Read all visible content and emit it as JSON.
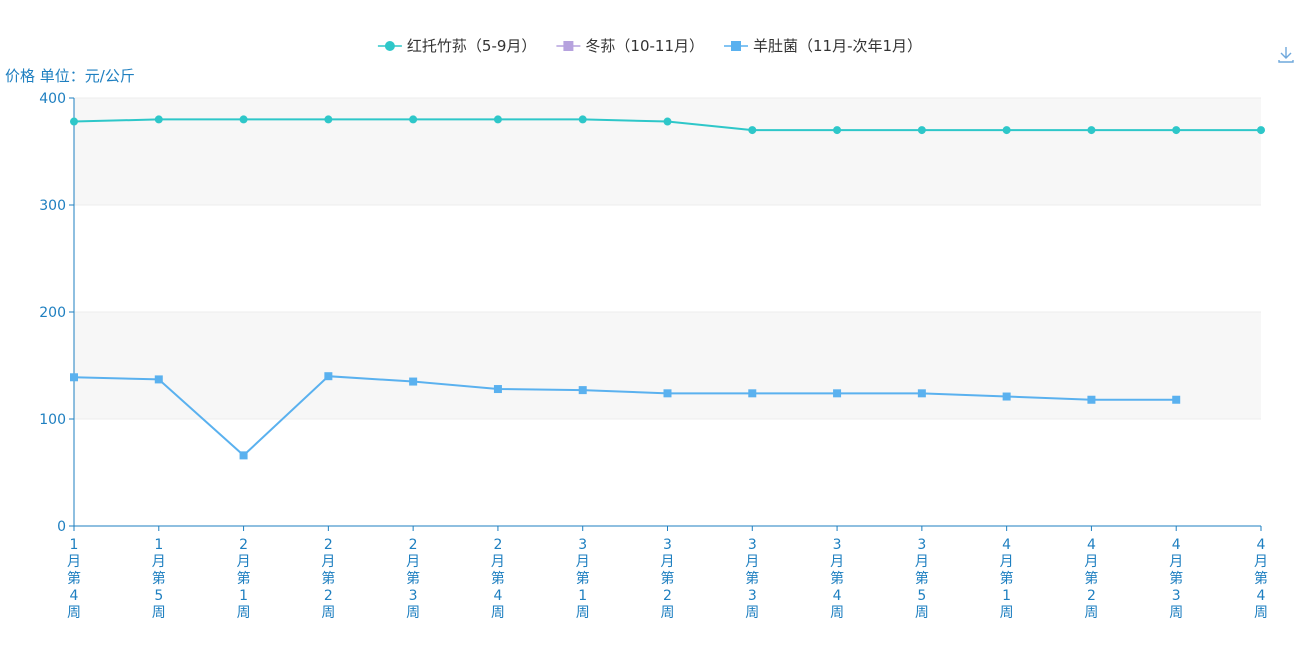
{
  "toolbar": {
    "download_icon": "download-icon"
  },
  "chart_data": {
    "type": "line",
    "ylabel": "价格 单位：元/公斤",
    "ylim": [
      0,
      400
    ],
    "yticks": [
      0,
      100,
      200,
      300,
      400
    ],
    "grid": "alternating horizontal bands",
    "legend_position": "top-center",
    "categories": [
      "1月第4周",
      "1月第5周",
      "2月第1周",
      "2月第2周",
      "2月第3周",
      "2月第4周",
      "3月第1周",
      "3月第2周",
      "3月第3周",
      "3月第4周",
      "3月第5周",
      "4月第1周",
      "4月第2周",
      "4月第3周",
      "4月第4周"
    ],
    "series": [
      {
        "name": "红托竹荪（5-9月）",
        "color": "#2ec7c9",
        "marker": "circle",
        "values": [
          378,
          380,
          380,
          380,
          380,
          380,
          380,
          378,
          370,
          370,
          370,
          370,
          370,
          370,
          370
        ]
      },
      {
        "name": "冬荪（10-11月）",
        "color": "#b6a2de",
        "marker": "square",
        "values": [
          null,
          null,
          null,
          null,
          null,
          null,
          null,
          null,
          null,
          null,
          null,
          null,
          null,
          null,
          null
        ]
      },
      {
        "name": "羊肚菌（11月-次年1月）",
        "color": "#5ab1ef",
        "marker": "square",
        "values": [
          139,
          137,
          66,
          140,
          135,
          128,
          127,
          124,
          124,
          124,
          124,
          121,
          118,
          118,
          null
        ]
      }
    ]
  }
}
